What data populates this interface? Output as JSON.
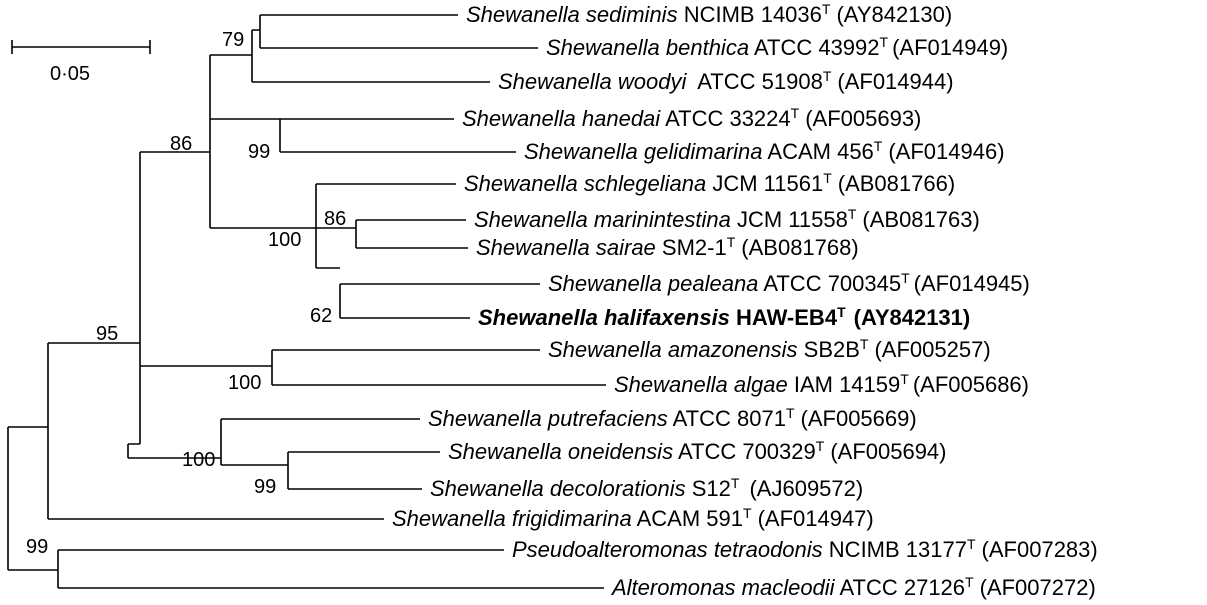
{
  "scale_bar": {
    "label": "0·05"
  },
  "taxa": [
    {
      "id": "sediminis",
      "genus": "Shewanella",
      "species": "sediminis",
      "strain": "NCIMB 14036",
      "sup": "T",
      "accession": "(AY842130)",
      "bold": false
    },
    {
      "id": "benthica",
      "genus": "Shewanella",
      "species": "benthica",
      "strain": "ATCC 43992",
      "sup": "T",
      "accession": "(AF014949)",
      "bold": false
    },
    {
      "id": "woodyi",
      "genus": "Shewanella",
      "species": "woodyi",
      "strain": "ATCC 51908",
      "sup": "T",
      "accession": "(AF014944)",
      "bold": false
    },
    {
      "id": "hanedai",
      "genus": "Shewanella",
      "species": "hanedai",
      "strain": "ATCC 33224",
      "sup": "T",
      "accession": "(AF005693)",
      "bold": false
    },
    {
      "id": "gelidimarina",
      "genus": "Shewanella",
      "species": "gelidimarina",
      "strain": "ACAM 456",
      "sup": "T",
      "accession": "(AF014946)",
      "bold": false
    },
    {
      "id": "schlegeliana",
      "genus": "Shewanella",
      "species": "schlegeliana",
      "strain": "JCM 11561",
      "sup": "T",
      "accession": "(AB081766)",
      "bold": false
    },
    {
      "id": "marinintestina",
      "genus": "Shewanella",
      "species": "marinintestina",
      "strain": "JCM 11558",
      "sup": "T",
      "accession": "(AB081763)",
      "bold": false
    },
    {
      "id": "sairae",
      "genus": "Shewanella",
      "species": "sairae",
      "strain": "SM2-1",
      "sup": "T",
      "accession": "(AB081768)",
      "bold": false
    },
    {
      "id": "pealeana",
      "genus": "Shewanella",
      "species": "pealeana",
      "strain": "ATCC 700345",
      "sup": "T",
      "accession": "(AF014945)",
      "bold": false
    },
    {
      "id": "halifaxensis",
      "genus": "Shewanella",
      "species": "halifaxensis",
      "strain": "HAW-EB4",
      "sup": "T",
      "accession": "(AY842131)",
      "bold": true
    },
    {
      "id": "amazonensis",
      "genus": "Shewanella",
      "species": "amazonensis",
      "strain": "SB2B",
      "sup": "T",
      "accession": "(AF005257)",
      "bold": false
    },
    {
      "id": "algae",
      "genus": "Shewanella",
      "species": "algae",
      "strain": "IAM 14159",
      "sup": "T",
      "accession": "(AF005686)",
      "bold": false
    },
    {
      "id": "putrefaciens",
      "genus": "Shewanella",
      "species": "putrefaciens",
      "strain": "ATCC 8071",
      "sup": "T",
      "accession": "(AF005669)",
      "bold": false
    },
    {
      "id": "oneidensis",
      "genus": "Shewanella",
      "species": "oneidensis",
      "strain": "ATCC 700329",
      "sup": "T",
      "accession": "(AF005694)",
      "bold": false
    },
    {
      "id": "decolorationis",
      "genus": "Shewanella",
      "species": "decolorationis",
      "strain": "S12",
      "sup": "T",
      "accession": "(AJ609572)",
      "bold": false
    },
    {
      "id": "frigidimarina",
      "genus": "Shewanella",
      "species": "frigidimarina",
      "strain": "ACAM 591",
      "sup": "T",
      "accession": "(AF014947)",
      "bold": false
    },
    {
      "id": "tetraodonis",
      "genus": "Pseudoalteromonas",
      "species": "tetraodonis",
      "strain": "NCIMB 13177",
      "sup": "T",
      "accession": "(AF007283)",
      "bold": false
    },
    {
      "id": "macleodii",
      "genus": "Alteromonas",
      "species": "macleodii",
      "strain": "ATCC 27126",
      "sup": "T",
      "accession": "(AF007272)",
      "bold": false
    }
  ],
  "bootstrap_values": [
    {
      "id": "b79",
      "value": "79"
    },
    {
      "id": "b86a",
      "value": "86"
    },
    {
      "id": "b99a",
      "value": "99"
    },
    {
      "id": "b86b",
      "value": "86"
    },
    {
      "id": "b100a",
      "value": "100"
    },
    {
      "id": "b62",
      "value": "62"
    },
    {
      "id": "b95",
      "value": "95"
    },
    {
      "id": "b100b",
      "value": "100"
    },
    {
      "id": "b100c",
      "value": "100"
    },
    {
      "id": "b99b",
      "value": "99"
    },
    {
      "id": "b99c",
      "value": "99"
    }
  ]
}
